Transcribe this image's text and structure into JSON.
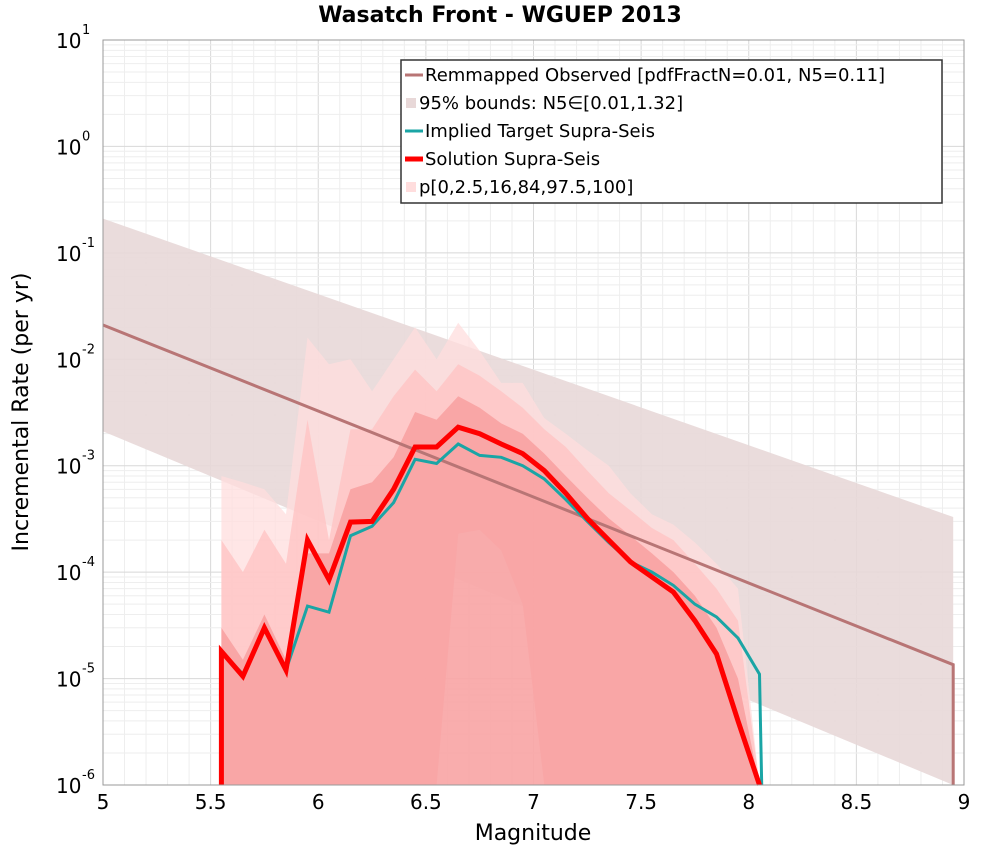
{
  "chart_data": {
    "type": "line",
    "title": "Wasatch Front - WGUEP 2013",
    "xlabel": "Magnitude",
    "ylabel": "Incremental Rate (per yr)",
    "xlim": [
      5,
      9
    ],
    "ylim": [
      1e-06,
      10
    ],
    "y_scale": "log",
    "grid": true,
    "legend_position": "top-right",
    "x_ticks": [
      "5",
      "5.5",
      "6",
      "6.5",
      "7",
      "7.5",
      "8",
      "8.5",
      "9"
    ],
    "y_ticks": [
      {
        "base": "10",
        "exp": "-6"
      },
      {
        "base": "10",
        "exp": "-5"
      },
      {
        "base": "10",
        "exp": "-4"
      },
      {
        "base": "10",
        "exp": "-3"
      },
      {
        "base": "10",
        "exp": "-2"
      },
      {
        "base": "10",
        "exp": "-1"
      },
      {
        "base": "10",
        "exp": "0"
      },
      {
        "base": "10",
        "exp": "1"
      }
    ],
    "colors": {
      "observed": "#b87575",
      "observed_bounds": "#e8d8d8",
      "target": "#1aa5a5",
      "target_overlap": "#5f7a7a",
      "solution": "#ff0000",
      "band_outer": "#ffdddd",
      "band_middle": "#ffc2c2",
      "band_inner": "#f79a9a"
    },
    "series": [
      {
        "name": "Remmapped Observed [pdfFractN=0.01, N5=0.11]",
        "style": "line",
        "x": [
          5.0,
          8.95,
          8.95
        ],
        "y": [
          0.021,
          1.35e-05,
          1e-06
        ]
      },
      {
        "name": "95% bounds: N5∈[0.01,1.32]",
        "style": "band",
        "x": [
          5.0,
          8.95
        ],
        "upper": [
          0.21,
          0.00033
        ],
        "lower": [
          0.0021,
          1e-06
        ]
      },
      {
        "name": "Implied Target Supra-Seis",
        "style": "line",
        "x": [
          5.55,
          5.65,
          5.75,
          5.85,
          5.95,
          6.05,
          6.15,
          6.25,
          6.35,
          6.45,
          6.55,
          6.65,
          6.75,
          6.85,
          6.95,
          7.05,
          7.15,
          7.25,
          7.35,
          7.45,
          7.55,
          7.65,
          7.75,
          7.85,
          7.95,
          8.05,
          8.06
        ],
        "y": [
          1.8e-05,
          1.1e-05,
          3e-05,
          1.2e-05,
          4.8e-05,
          4.2e-05,
          0.00022,
          0.00027,
          0.00045,
          0.00115,
          0.00105,
          0.0016,
          0.00125,
          0.0012,
          0.001,
          0.00075,
          0.00048,
          0.0003,
          0.00019,
          0.000125,
          0.0001,
          7.5e-05,
          5e-05,
          3.8e-05,
          2.4e-05,
          1.1e-05,
          1e-06
        ]
      },
      {
        "name": "Solution Supra-Seis",
        "style": "line",
        "x": [
          5.55,
          5.55,
          5.65,
          5.75,
          5.85,
          5.95,
          6.05,
          6.15,
          6.25,
          6.35,
          6.45,
          6.55,
          6.65,
          6.75,
          6.85,
          6.95,
          7.05,
          7.15,
          7.25,
          7.35,
          7.45,
          7.55,
          7.65,
          7.75,
          7.85,
          7.95,
          8.05
        ],
        "y": [
          1e-06,
          1.8e-05,
          1.05e-05,
          3e-05,
          1.2e-05,
          0.0002,
          8.5e-05,
          0.000295,
          0.0003,
          0.0006,
          0.0015,
          0.0015,
          0.0023,
          0.002,
          0.0016,
          0.0013,
          0.0009,
          0.00055,
          0.00032,
          0.0002,
          0.000125,
          9e-05,
          6.5e-05,
          3.5e-05,
          1.7e-05,
          4e-06,
          1e-06
        ]
      },
      {
        "name": "p[0,2.5,16,84,97.5,100]",
        "style": "band",
        "x": [
          5.55,
          5.65,
          5.75,
          5.85,
          5.95,
          6.05,
          6.15,
          6.25,
          6.35,
          6.45,
          6.55,
          6.65,
          6.75,
          6.85,
          6.95,
          7.05,
          7.15,
          7.25,
          7.35,
          7.45,
          7.55,
          7.65,
          7.75,
          7.85,
          7.95,
          8.05
        ],
        "bands": [
          {
            "level": "outer",
            "upper": [
              0.0008,
              0.0007,
              0.0006,
              0.00035,
              0.016,
              0.009,
              0.01,
              0.005,
              0.01,
              0.02,
              0.01,
              0.022,
              0.012,
              0.006,
              0.006,
              0.0028,
              0.002,
              0.0014,
              0.001,
              0.00055,
              0.00035,
              0.00028,
              0.00019,
              0.00012,
              7e-05,
              1e-06
            ],
            "lower": [
              1e-06,
              1e-06,
              1e-06,
              1e-06,
              1e-06,
              1e-06,
              1e-06,
              1e-06,
              1e-06,
              1e-06,
              1e-06,
              1e-06,
              1e-06,
              1e-06,
              1e-06,
              1e-06,
              1e-06,
              1e-06,
              1e-06,
              1e-06,
              1e-06,
              1e-06,
              1e-06,
              1e-06,
              1e-06,
              1e-06
            ]
          },
          {
            "level": "middle",
            "upper": [
              0.0002,
              0.0001,
              0.00025,
              0.00012,
              0.0027,
              0.0002,
              0.0022,
              0.0022,
              0.0045,
              0.008,
              0.005,
              0.009,
              0.007,
              0.005,
              0.0035,
              0.0022,
              0.0015,
              0.0009,
              0.00055,
              0.00038,
              0.00026,
              0.0002,
              0.00012,
              7e-05,
              3.5e-05,
              1e-06
            ],
            "lower": [
              1e-06,
              1e-06,
              1e-06,
              1e-06,
              1e-06,
              1e-06,
              1e-06,
              1e-06,
              1e-06,
              1e-06,
              1e-06,
              0.00023,
              0.00025,
              0.00016,
              5e-05,
              1e-06,
              1e-06,
              1e-06,
              1e-06,
              1e-06,
              1e-06,
              1e-06,
              1e-06,
              1e-06,
              1e-06,
              1e-06
            ]
          },
          {
            "level": "inner",
            "upper": [
              3e-05,
              1.5e-05,
              4e-05,
              1.5e-05,
              0.00015,
              0.00015,
              0.0006,
              0.0007,
              0.0012,
              0.0032,
              0.0027,
              0.0045,
              0.0035,
              0.0025,
              0.002,
              0.0013,
              0.0008,
              0.0005,
              0.00032,
              0.00022,
              0.00015,
              0.0001,
              6e-05,
              3e-05,
              1e-05,
              1e-06
            ],
            "lower": [
              1e-06,
              1e-06,
              1e-06,
              1e-06,
              1e-06,
              1e-06,
              1e-06,
              1e-06,
              1e-06,
              1e-06,
              1e-06,
              1e-06,
              1e-06,
              1e-06,
              1e-06,
              1e-06,
              1e-06,
              1e-06,
              1e-06,
              1e-06,
              1e-06,
              1e-06,
              1e-06,
              1e-06,
              1e-06,
              1e-06
            ]
          }
        ]
      }
    ]
  }
}
